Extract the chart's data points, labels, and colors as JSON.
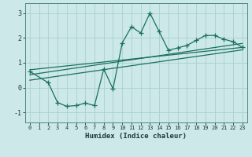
{
  "xlabel": "Humidex (Indice chaleur)",
  "bg_color": "#cce8e8",
  "grid_color": "#aacfcf",
  "line_color": "#1a7060",
  "xlim": [
    -0.5,
    23.5
  ],
  "ylim": [
    -1.4,
    3.4
  ],
  "xticks": [
    0,
    1,
    2,
    3,
    4,
    5,
    6,
    7,
    8,
    9,
    10,
    11,
    12,
    13,
    14,
    15,
    16,
    17,
    18,
    19,
    20,
    21,
    22,
    23
  ],
  "yticks": [
    -1,
    0,
    1,
    2,
    3
  ],
  "scatter_x": [
    0,
    2,
    3,
    4,
    5,
    6,
    7,
    8,
    9,
    10,
    11,
    12,
    13,
    14,
    15,
    16,
    17,
    18,
    19,
    20,
    21,
    22,
    23
  ],
  "scatter_y": [
    0.65,
    0.2,
    -0.6,
    -0.75,
    -0.72,
    -0.62,
    -0.72,
    0.75,
    -0.05,
    1.8,
    2.45,
    2.2,
    3.0,
    2.25,
    1.5,
    1.6,
    1.7,
    1.9,
    2.1,
    2.1,
    1.95,
    1.85,
    1.62
  ],
  "line1_x": [
    0,
    23
  ],
  "line1_y": [
    0.72,
    1.62
  ],
  "line2_x": [
    0,
    23
  ],
  "line2_y": [
    0.52,
    1.78
  ],
  "line3_x": [
    0,
    23
  ],
  "line3_y": [
    0.3,
    1.52
  ]
}
